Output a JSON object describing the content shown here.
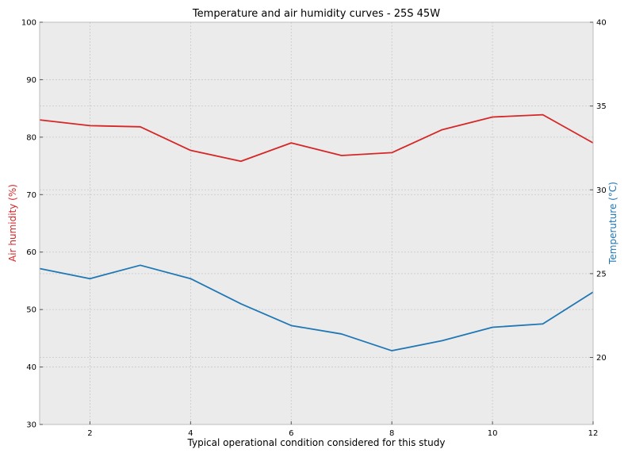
{
  "chart_data": {
    "type": "line",
    "title": "Temperature and air humidity curves - 25S 45W",
    "xlabel": "Typical operational condition considered for this study",
    "ylabel_left": "Air humidity (%)",
    "ylabel_right": "Temperuture (°C)",
    "xlim": [
      1,
      12
    ],
    "ylim_left": [
      30,
      100
    ],
    "ylim_right": [
      16,
      40
    ],
    "x_ticks": [
      2,
      4,
      6,
      8,
      10,
      12
    ],
    "y_ticks_left": [
      30,
      40,
      50,
      60,
      70,
      80,
      90,
      100
    ],
    "y_ticks_right": [
      20,
      25,
      30,
      35,
      40
    ],
    "grid": true,
    "x": [
      1,
      2,
      3,
      4,
      5,
      6,
      7,
      8,
      9,
      10,
      11,
      12
    ],
    "series": [
      {
        "axis": "left",
        "color": "#d62728",
        "values": [
          83.0,
          82.0,
          81.8,
          77.7,
          75.8,
          79.0,
          76.8,
          77.3,
          81.3,
          83.5,
          83.9,
          79.0
        ]
      },
      {
        "axis": "right",
        "color": "#1f77b4",
        "values": [
          25.3,
          24.7,
          25.5,
          24.7,
          23.2,
          21.9,
          21.4,
          20.4,
          21.0,
          21.8,
          22.0,
          23.9
        ]
      }
    ],
    "colors": {
      "plot_background": "#ebebeb",
      "grid": "#c8c8c8",
      "spine": "#bcbcbc"
    }
  }
}
